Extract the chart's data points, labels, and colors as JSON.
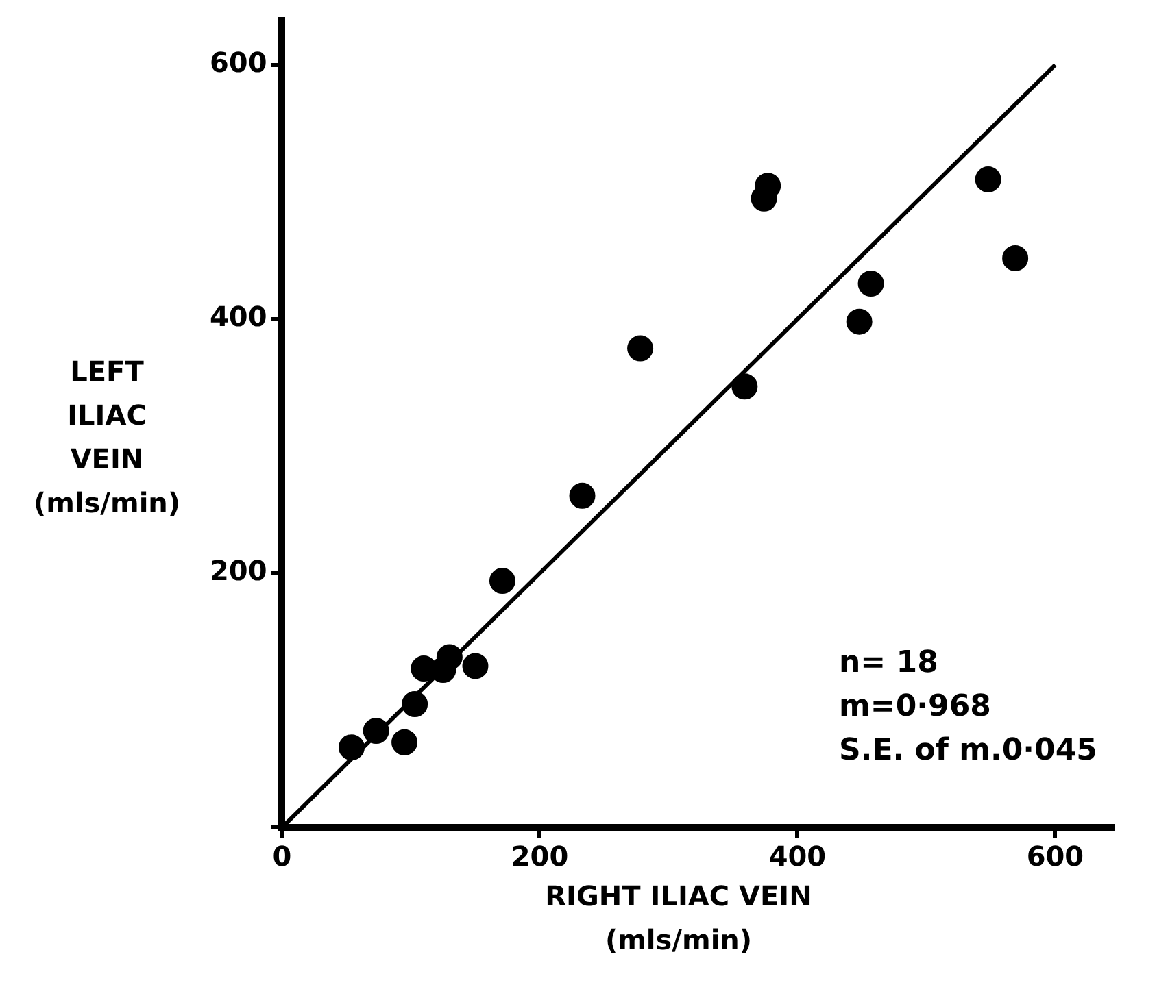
{
  "chart_data": {
    "type": "scatter",
    "xlabel": "RIGHT ILIAC VEIN\n(mls/min)",
    "ylabel": "LEFT\nILIAC\nVEIN\n(mls/min)",
    "xlim": [
      0,
      645
    ],
    "ylim": [
      0,
      635
    ],
    "xticks": [
      0,
      200,
      400,
      600
    ],
    "yticks": [
      {
        "value": 0,
        "label": null
      },
      200,
      400,
      600
    ],
    "grid": false,
    "marker": "circle",
    "series": [
      {
        "color": "#000000",
        "x": [
          54,
          73,
          95,
          103,
          110,
          125,
          130,
          150,
          171,
          233,
          278,
          359,
          374,
          377,
          448,
          457,
          548,
          569
        ],
        "values": [
          63,
          76,
          67,
          97,
          125,
          124,
          134,
          127,
          194,
          261,
          377,
          347,
          495,
          505,
          398,
          428,
          510,
          448
        ]
      },
      {
        "type": "line",
        "marker": "none",
        "color": "#000000",
        "x": [
          0,
          600
        ],
        "values": [
          0,
          600
        ]
      }
    ],
    "annotations": [
      "n= 18",
      "m=0·968",
      "S.E. of m.0·045"
    ]
  }
}
